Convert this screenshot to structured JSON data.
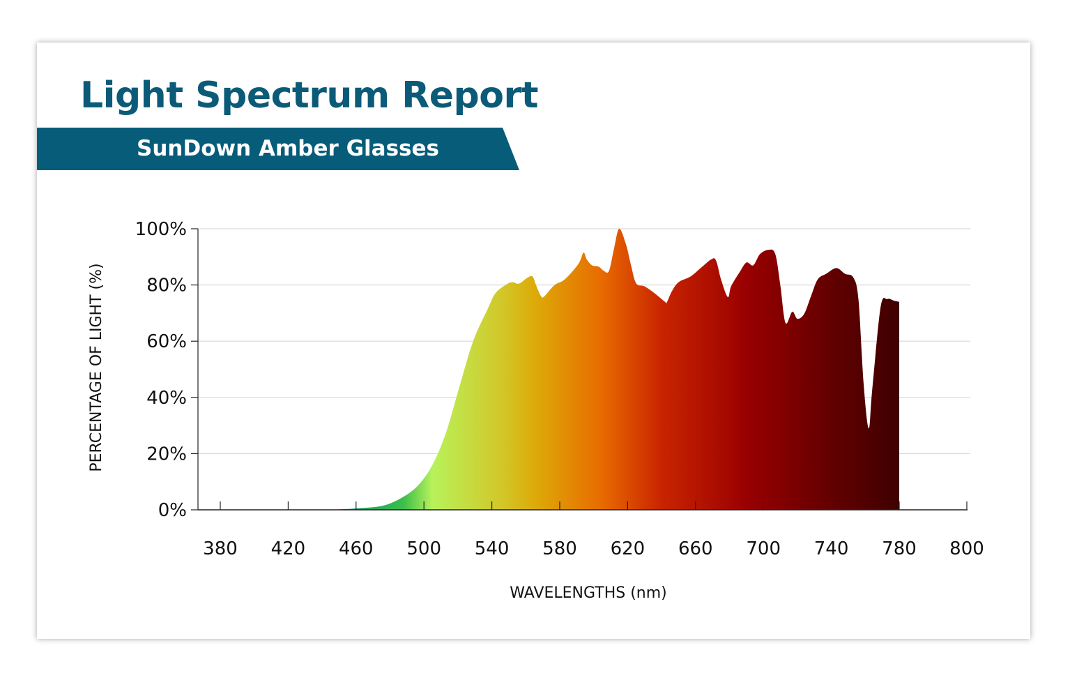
{
  "header": {
    "title": "Light Spectrum Report",
    "subtitle": "SunDown Amber Glasses"
  },
  "chart_data": {
    "type": "area",
    "title": "Light Spectrum Report",
    "subtitle": "SunDown Amber Glasses",
    "xlabel": "WAVELENGTHS (nm)",
    "ylabel": "PERCENTAGE OF LIGHT (%)",
    "xlim": [
      367,
      800
    ],
    "ylim": [
      0,
      100
    ],
    "x_ticks": [
      380,
      420,
      460,
      500,
      540,
      580,
      620,
      660,
      700,
      740,
      780,
      800
    ],
    "x_tick_labels": [
      "380",
      "420",
      "460",
      "500",
      "540",
      "580",
      "620",
      "660",
      "700",
      "740",
      "780",
      "800"
    ],
    "y_ticks": [
      0,
      20,
      40,
      60,
      80,
      100
    ],
    "y_tick_labels": [
      "0%",
      "20%",
      "40%",
      "60%",
      "80%",
      "100%"
    ],
    "grid": "horizontal",
    "fill": "wavelength color gradient (green to dark red)",
    "colors": {
      "title": "#0b5b78",
      "banner": "#065c79",
      "grid": "#d9d9d9"
    },
    "gradient_stops": [
      {
        "nm": 445,
        "color": "#0a8a6a"
      },
      {
        "nm": 488,
        "color": "#3cbf4a"
      },
      {
        "nm": 505,
        "color": "#b8f25a"
      },
      {
        "nm": 545,
        "color": "#d2c82a"
      },
      {
        "nm": 565,
        "color": "#dcab08"
      },
      {
        "nm": 605,
        "color": "#e86a00"
      },
      {
        "nm": 640,
        "color": "#c92400"
      },
      {
        "nm": 690,
        "color": "#990000"
      },
      {
        "nm": 740,
        "color": "#620000"
      },
      {
        "nm": 780,
        "color": "#3f0000"
      }
    ],
    "x": [
      445,
      460,
      476,
      488,
      497,
      505,
      513,
      521,
      529,
      538,
      542,
      548,
      552,
      556,
      561,
      564,
      566,
      569,
      571,
      577,
      583,
      591,
      594,
      596,
      599,
      603,
      606,
      609,
      612,
      615,
      619,
      622,
      625,
      630,
      636,
      642,
      643,
      646,
      650,
      657,
      663,
      669,
      672,
      675,
      679,
      681,
      686,
      690,
      694,
      698,
      703,
      707,
      710,
      713,
      717,
      720,
      724,
      728,
      732,
      737,
      743,
      748,
      753,
      756,
      759,
      762,
      764,
      769,
      773,
      777,
      780
    ],
    "y": [
      0,
      0.5,
      1.5,
      4.7,
      9,
      16,
      27.5,
      44,
      60,
      72,
      77,
      80,
      81,
      80.5,
      82.6,
      83,
      80,
      76,
      76,
      80,
      82,
      87.5,
      91.5,
      89,
      87,
      86.5,
      85,
      85,
      93,
      100,
      94.5,
      87,
      80.6,
      79.5,
      77,
      74,
      73.7,
      77.7,
      81,
      83,
      86,
      89,
      88.8,
      82,
      75.7,
      79.6,
      84.6,
      88,
      87,
      91,
      92.5,
      91,
      79.6,
      66.5,
      70.5,
      68,
      69.7,
      76,
      82,
      84,
      86,
      84,
      82.6,
      74.7,
      45,
      29,
      42,
      72,
      75,
      74.4,
      74
    ]
  }
}
